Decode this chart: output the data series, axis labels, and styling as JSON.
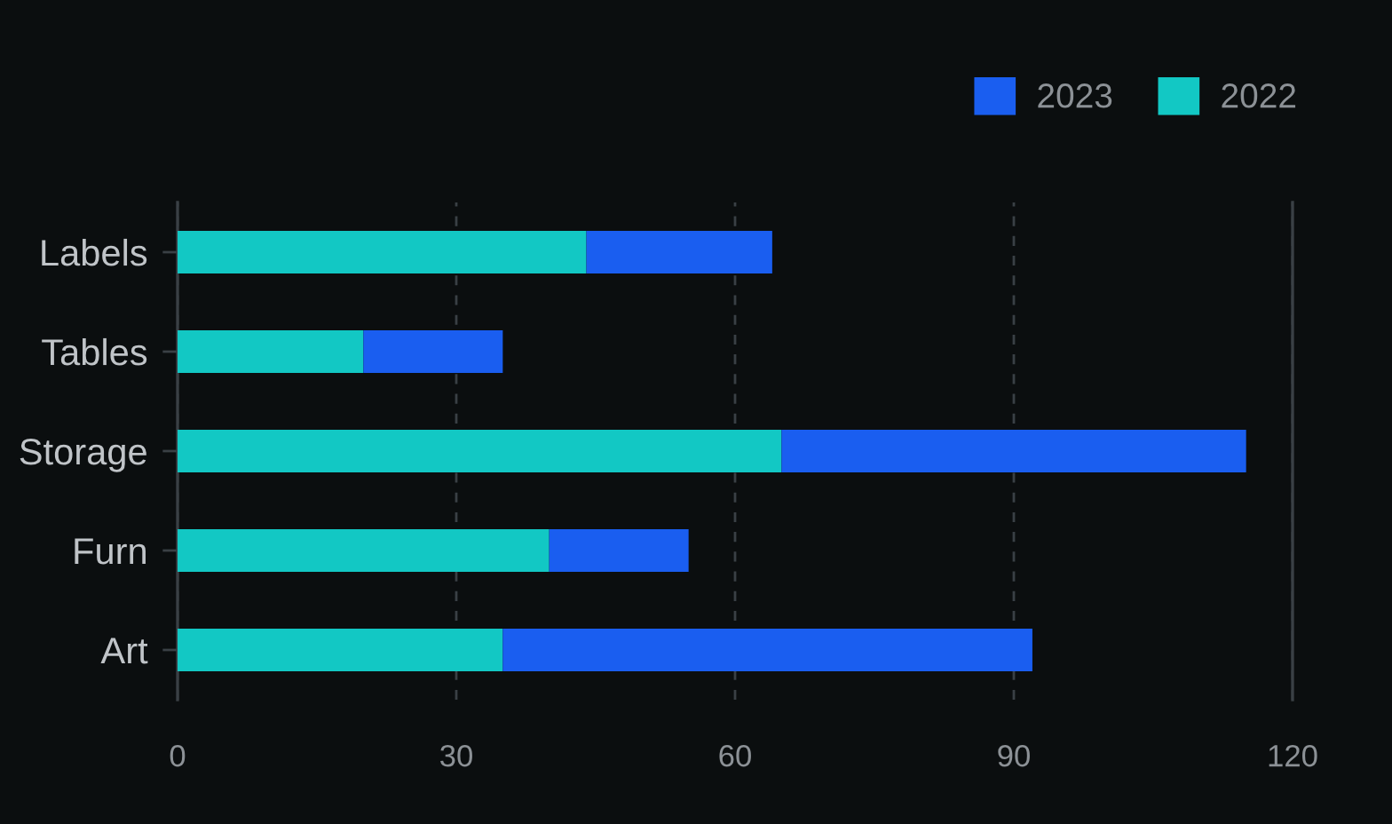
{
  "chart_data": {
    "type": "bar",
    "orientation": "horizontal",
    "stacked": true,
    "categories": [
      "Labels",
      "Tables",
      "Storage",
      "Furn",
      "Art"
    ],
    "series": [
      {
        "name": "2022",
        "color": "#12c8c4",
        "values": [
          44,
          20,
          65,
          40,
          35
        ]
      },
      {
        "name": "2023",
        "color": "#1a5ef0",
        "values": [
          20,
          15,
          50,
          15,
          57
        ]
      }
    ],
    "xlim": [
      0,
      120
    ],
    "xticks": [
      0,
      30,
      60,
      90,
      120
    ],
    "grid": "x",
    "legend": "top right"
  }
}
